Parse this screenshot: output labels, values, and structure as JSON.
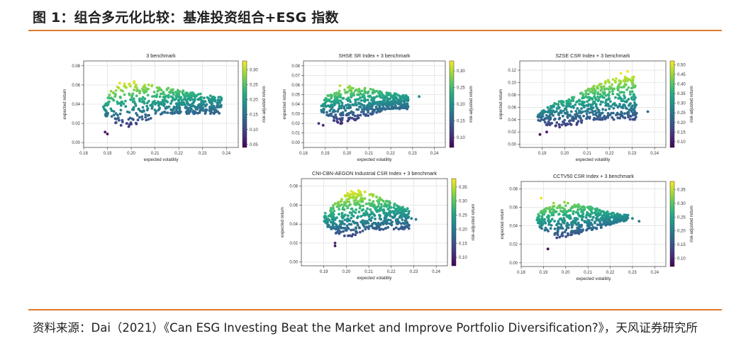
{
  "header": {
    "title": "图 1：组合多元化比较：基准投资组合+ESG 指数"
  },
  "footer": {
    "source": "资料来源：Dai（2021）《Can ESG Investing Beat the Market and Improve Portfolio Diversification?》，天风证券研究所"
  },
  "colors": {
    "rule": "#e07a2a",
    "colormap": "viridis"
  },
  "chart_data": [
    {
      "type": "scatter",
      "title": "3 benchmark",
      "xlabel": "expected volatility",
      "ylabel": "expected return",
      "colorbar_label": "risk-adjusted return",
      "xlim": [
        0.18,
        0.245
      ],
      "ylim": [
        -0.005,
        0.085
      ],
      "xticks": [
        "0.18",
        "0.19",
        "0.20",
        "0.21",
        "0.22",
        "0.23",
        "0.24"
      ],
      "yticks": [
        "0.00",
        "0.02",
        "0.04",
        "0.06",
        "0.08"
      ],
      "cticks": [
        "0.05",
        "0.10",
        "0.15",
        "0.20",
        "0.25",
        "0.30"
      ],
      "clim": [
        0.04,
        0.33
      ],
      "shape": {
        "vmin": 0.188,
        "apex_y": 0.03,
        "upper": [
          [
            0.198,
            0.067
          ],
          [
            0.205,
            0.062
          ],
          [
            0.22,
            0.055
          ],
          [
            0.235,
            0.048
          ]
        ],
        "lower": [
          [
            0.19,
            0.008
          ],
          [
            0.205,
            0.022
          ],
          [
            0.22,
            0.036
          ],
          [
            0.235,
            0.044
          ]
        ],
        "xmax": 0.238
      },
      "outliers": [
        [
          0.238,
          0.046
        ],
        [
          0.232,
          0.047
        ],
        [
          0.229,
          0.045
        ],
        [
          0.189,
          0.011
        ],
        [
          0.19,
          0.009
        ]
      ],
      "grid": true
    },
    {
      "type": "scatter",
      "title": "SHSE SR Index + 3 benchmark",
      "xlabel": "expected volatility",
      "ylabel": "expected return",
      "colorbar_label": "risk-adjusted return",
      "xlim": [
        0.18,
        0.245
      ],
      "ylim": [
        -0.005,
        0.085
      ],
      "xticks": [
        "0.18",
        "0.19",
        "0.20",
        "0.21",
        "0.22",
        "0.23",
        "0.24"
      ],
      "yticks": [
        "0.00",
        "0.01",
        "0.02",
        "0.03",
        "0.04",
        "0.05",
        "0.06",
        "0.07",
        "0.08"
      ],
      "cticks": [
        "0.10",
        "0.15",
        "0.20",
        "0.25",
        "0.30"
      ],
      "clim": [
        0.07,
        0.33
      ],
      "shape": {
        "vmin": 0.188,
        "apex_y": 0.035,
        "upper": [
          [
            0.196,
            0.06
          ],
          [
            0.205,
            0.058
          ],
          [
            0.215,
            0.054
          ],
          [
            0.225,
            0.05
          ]
        ],
        "lower": [
          [
            0.19,
            0.016
          ],
          [
            0.2,
            0.02
          ],
          [
            0.212,
            0.03
          ],
          [
            0.225,
            0.04
          ]
        ],
        "xmax": 0.228
      },
      "outliers": [
        [
          0.233,
          0.048
        ],
        [
          0.228,
          0.045
        ],
        [
          0.222,
          0.046
        ],
        [
          0.216,
          0.04
        ],
        [
          0.189,
          0.018
        ],
        [
          0.187,
          0.02
        ]
      ],
      "grid": true
    },
    {
      "type": "scatter",
      "title": "SZSE CSR Index + 3 benchmark",
      "xlabel": "expected volatility",
      "ylabel": "expected return",
      "colorbar_label": "risk-adjusted return",
      "xlim": [
        0.18,
        0.245
      ],
      "ylim": [
        -0.005,
        0.135
      ],
      "xticks": [
        "0.19",
        "0.20",
        "0.21",
        "0.22",
        "0.23",
        "0.24"
      ],
      "yticks": [
        "0.00",
        "0.02",
        "0.04",
        "0.06",
        "0.08",
        "0.10",
        "0.12"
      ],
      "cticks": [
        "0.10",
        "0.15",
        "0.20",
        "0.25",
        "0.30",
        "0.35",
        "0.40",
        "0.45",
        "0.50"
      ],
      "clim": [
        0.07,
        0.52
      ],
      "shape": {
        "vmin": 0.188,
        "apex_y": 0.04,
        "upper": [
          [
            0.2,
            0.07
          ],
          [
            0.21,
            0.09
          ],
          [
            0.22,
            0.105
          ],
          [
            0.228,
            0.11
          ]
        ],
        "lower": [
          [
            0.19,
            0.02
          ],
          [
            0.205,
            0.03
          ],
          [
            0.218,
            0.045
          ],
          [
            0.23,
            0.06
          ]
        ],
        "xmax": 0.232
      },
      "outliers": [
        [
          0.237,
          0.053
        ],
        [
          0.228,
          0.118
        ],
        [
          0.225,
          0.115
        ],
        [
          0.189,
          0.016
        ],
        [
          0.192,
          0.02
        ]
      ],
      "grid": true
    },
    {
      "type": "scatter",
      "title": "CNI-CBN-AEGON Industrial CSR Index + 3 benchmark",
      "xlabel": "expected volatility",
      "ylabel": "expected return",
      "colorbar_label": "risk-adjusted return",
      "xlim": [
        0.18,
        0.245
      ],
      "ylim": [
        -0.004,
        0.088
      ],
      "xticks": [
        "0.19",
        "0.20",
        "0.21",
        "0.22",
        "0.23",
        "0.24"
      ],
      "yticks": [
        "0.00",
        "0.02",
        "0.04",
        "0.06",
        "0.08"
      ],
      "cticks": [
        "0.10",
        "0.15",
        "0.20",
        "0.25",
        "0.30",
        "0.35"
      ],
      "clim": [
        0.07,
        0.38
      ],
      "shape": {
        "vmin": 0.19,
        "apex_y": 0.034,
        "upper": [
          [
            0.198,
            0.07
          ],
          [
            0.205,
            0.078
          ],
          [
            0.215,
            0.068
          ],
          [
            0.225,
            0.058
          ]
        ],
        "lower": [
          [
            0.192,
            0.022
          ],
          [
            0.2,
            0.025
          ],
          [
            0.212,
            0.035
          ],
          [
            0.225,
            0.045
          ]
        ],
        "xmax": 0.228
      },
      "outliers": [
        [
          0.231,
          0.045
        ],
        [
          0.229,
          0.046
        ],
        [
          0.195,
          0.017
        ],
        [
          0.195,
          0.02
        ]
      ],
      "grid": true
    },
    {
      "type": "scatter",
      "title": "CCTV50 CSR Index + 3 benchmark",
      "xlabel": "expected volatility",
      "ylabel": "expected return",
      "colorbar_label": "risk-adjusted return",
      "xlim": [
        0.18,
        0.245
      ],
      "ylim": [
        -0.004,
        0.088
      ],
      "xticks": [
        "0.18",
        "0.19",
        "0.20",
        "0.21",
        "0.22",
        "0.23",
        "0.24"
      ],
      "yticks": [
        "0.00",
        "0.02",
        "0.04",
        "0.06",
        "0.08"
      ],
      "cticks": [
        "0.10",
        "0.15",
        "0.20",
        "0.25",
        "0.30",
        "0.35"
      ],
      "clim": [
        0.07,
        0.38
      ],
      "shape": {
        "vmin": 0.187,
        "apex_y": 0.048,
        "upper": [
          [
            0.19,
            0.068
          ],
          [
            0.2,
            0.066
          ],
          [
            0.212,
            0.06
          ],
          [
            0.225,
            0.052
          ]
        ],
        "lower": [
          [
            0.19,
            0.025
          ],
          [
            0.2,
            0.028
          ],
          [
            0.212,
            0.035
          ],
          [
            0.225,
            0.045
          ]
        ],
        "xmax": 0.228
      },
      "outliers": [
        [
          0.233,
          0.045
        ],
        [
          0.23,
          0.048
        ],
        [
          0.222,
          0.05
        ],
        [
          0.192,
          0.015
        ],
        [
          0.189,
          0.07
        ]
      ],
      "grid": true
    }
  ]
}
